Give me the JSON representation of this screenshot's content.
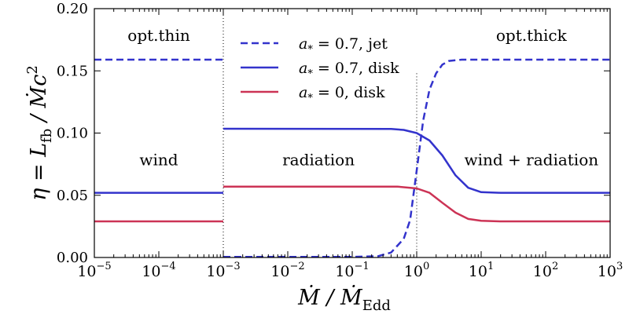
{
  "chart_data": {
    "type": "line",
    "title": "",
    "xlabel": {
      "main": "Ṁ / Ṁ",
      "sub": "Edd"
    },
    "ylabel": {
      "main": "η = L",
      "sub": "fb",
      "rest": " / Ṁc",
      "sup": "2"
    },
    "xscale": "log",
    "xlim": [
      1e-05,
      1000.0
    ],
    "ylim": [
      0,
      0.2
    ],
    "grid": false,
    "legend_position": "top-center",
    "x_ticks": [
      {
        "base": "10",
        "exp": "−5",
        "value": -5
      },
      {
        "base": "10",
        "exp": "−4",
        "value": -4
      },
      {
        "base": "10",
        "exp": "−3",
        "value": -3
      },
      {
        "base": "10",
        "exp": "−2",
        "value": -2
      },
      {
        "base": "10",
        "exp": "−1",
        "value": -1
      },
      {
        "base": "10",
        "exp": "0",
        "value": 0
      },
      {
        "base": "10",
        "exp": "1",
        "value": 1
      },
      {
        "base": "10",
        "exp": "2",
        "value": 2
      },
      {
        "base": "10",
        "exp": "3",
        "value": 3
      }
    ],
    "y_ticks": [
      {
        "label": "0.00",
        "value": 0
      },
      {
        "label": "0.05",
        "value": 0.05
      },
      {
        "label": "0.10",
        "value": 0.1
      },
      {
        "label": "0.15",
        "value": 0.15
      },
      {
        "label": "0.20",
        "value": 0.2
      }
    ],
    "series": [
      {
        "name": "a* = 0.7, jet",
        "legend": {
          "sym": "a",
          "sub": "*",
          "text": " = 0.7, jet"
        },
        "color": "#3333cc",
        "style": "dashed",
        "segments": [
          {
            "x": [
              1e-05,
              0.001
            ],
            "y": [
              0.159,
              0.159
            ]
          },
          {
            "x": [
              0.001,
              0.1,
              0.25,
              0.4,
              0.63,
              0.79,
              1.0,
              1.26,
              1.58,
              2.0,
              2.5,
              3.16,
              5.0,
              1000.0
            ],
            "y": [
              0.0005,
              0.0005,
              0.001,
              0.004,
              0.015,
              0.03,
              0.07,
              0.11,
              0.135,
              0.148,
              0.155,
              0.158,
              0.159,
              0.159
            ]
          }
        ]
      },
      {
        "name": "a* = 0.7, disk",
        "legend": {
          "sym": "a",
          "sub": "*",
          "text": " = 0.7, disk"
        },
        "color": "#3333cc",
        "style": "solid",
        "segments": [
          {
            "x": [
              1e-05,
              0.001
            ],
            "y": [
              0.052,
              0.052
            ]
          },
          {
            "x": [
              0.001,
              0.4,
              0.63,
              1.0,
              1.58,
              2.5,
              4.0,
              6.3,
              10,
              20,
              1000.0
            ],
            "y": [
              0.1035,
              0.1033,
              0.1025,
              0.1,
              0.094,
              0.082,
              0.066,
              0.056,
              0.0525,
              0.052,
              0.052
            ]
          }
        ]
      },
      {
        "name": "a* = 0, disk",
        "legend": {
          "sym": "a",
          "sub": "*",
          "text": " = 0, disk"
        },
        "color": "#cc3355",
        "style": "solid",
        "segments": [
          {
            "x": [
              1e-05,
              0.001
            ],
            "y": [
              0.029,
              0.029
            ]
          },
          {
            "x": [
              0.001,
              0.5,
              1.0,
              1.58,
              2.5,
              4.0,
              6.3,
              10,
              20,
              1000.0
            ],
            "y": [
              0.057,
              0.057,
              0.0555,
              0.052,
              0.044,
              0.036,
              0.031,
              0.0295,
              0.029,
              0.029
            ]
          }
        ]
      }
    ],
    "vlines": [
      {
        "x": 0.001,
        "ymax": 0.2
      },
      {
        "x": 1.0,
        "ymax": 0.148
      }
    ],
    "annotations": [
      {
        "text": "opt.thin",
        "x": 0.0001,
        "y": 0.178
      },
      {
        "text": "opt.thick",
        "x": 60,
        "y": 0.178
      },
      {
        "text": "wind",
        "x": 0.0001,
        "y": 0.078
      },
      {
        "text": "radiation",
        "x": 0.03,
        "y": 0.078
      },
      {
        "text": "wind + radiation",
        "x": 60,
        "y": 0.078
      }
    ]
  }
}
